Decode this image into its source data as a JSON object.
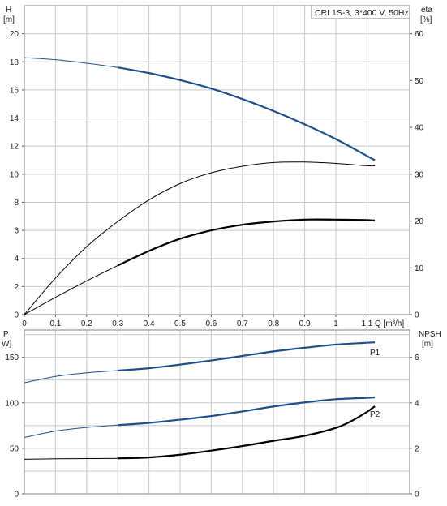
{
  "colors": {
    "blue": "#1f4e8c",
    "black": "#000000",
    "grid": "#c8c8c8",
    "frame": "#808080"
  },
  "header": {
    "title": "CRI 1S-3, 3*400 V, 50Hz"
  },
  "chart_data": [
    {
      "type": "line",
      "name": "performance",
      "xlabel": "Q [m³/h]",
      "x_unit": "Q [m³/h]",
      "xlim": [
        0,
        1.2
      ],
      "x_ticks": [
        "0",
        "0.1",
        "0.2",
        "0.3",
        "0.4",
        "0.5",
        "0.6",
        "0.7",
        "0.8",
        "0.9",
        "1",
        "1.1"
      ],
      "left_axis": {
        "label": "H",
        "unit": "[m]",
        "ylim": [
          0,
          22
        ],
        "ticks": [
          "0",
          "2",
          "4",
          "6",
          "8",
          "10",
          "12",
          "14",
          "16",
          "18",
          "20"
        ]
      },
      "right_axis": {
        "label": "eta",
        "unit": "[%]",
        "ylim": [
          0,
          66
        ],
        "ticks": [
          "0",
          "10",
          "20",
          "30",
          "40",
          "50",
          "60"
        ]
      },
      "grid": true,
      "series": [
        {
          "axis": "left",
          "color": "#1f4e8c",
          "x": [
            0,
            0.1,
            0.2,
            0.3,
            0.4,
            0.5,
            0.6,
            0.7,
            0.8,
            0.9,
            1.0,
            1.1,
            1.125
          ],
          "y": [
            18.3,
            18.15,
            17.9,
            17.6,
            17.2,
            16.7,
            16.1,
            15.35,
            14.5,
            13.55,
            12.5,
            11.3,
            11.0
          ],
          "highlight_from": 0.3
        },
        {
          "axis": "right",
          "color": "#000000",
          "x": [
            0,
            0.1,
            0.2,
            0.3,
            0.4,
            0.5,
            0.6,
            0.7,
            0.8,
            0.9,
            1.0,
            1.1,
            1.125
          ],
          "y": [
            0,
            7.8,
            14.5,
            19.9,
            24.5,
            28.0,
            30.3,
            31.7,
            32.5,
            32.6,
            32.3,
            31.8,
            31.8
          ],
          "highlight_from": 99
        },
        {
          "axis": "right",
          "color": "#000000",
          "x": [
            0,
            0.1,
            0.2,
            0.3,
            0.4,
            0.5,
            0.6,
            0.7,
            0.8,
            0.9,
            1.0,
            1.1,
            1.125
          ],
          "y": [
            0,
            3.7,
            7.2,
            10.5,
            13.6,
            16.2,
            18.0,
            19.2,
            19.9,
            20.3,
            20.3,
            20.2,
            20.1
          ],
          "highlight_from": 0.3
        }
      ]
    },
    {
      "type": "line",
      "name": "power-npsh",
      "xlim": [
        0,
        1.2
      ],
      "left_axis": {
        "label": "P",
        "unit": "W]",
        "ylim": [
          0,
          180
        ],
        "ticks": [
          "0",
          "50",
          "100",
          "150"
        ]
      },
      "right_axis": {
        "label": "NPSH",
        "unit": "[m]",
        "ylim": [
          0,
          7.2
        ],
        "ticks": [
          "0",
          "2",
          "4",
          "6"
        ]
      },
      "grid": true,
      "series": [
        {
          "name": "P1",
          "axis": "left",
          "color": "#1f4e8c",
          "x": [
            0,
            0.1,
            0.2,
            0.3,
            0.4,
            0.5,
            0.6,
            0.7,
            0.8,
            0.9,
            1.0,
            1.1,
            1.125
          ],
          "y": [
            122,
            129,
            133,
            135.5,
            138,
            142,
            146.5,
            151.5,
            156.5,
            160.5,
            164,
            166,
            166.5
          ],
          "highlight_from": 0.3
        },
        {
          "name": "P2",
          "axis": "left",
          "color": "#1f4e8c",
          "x": [
            0,
            0.1,
            0.2,
            0.3,
            0.4,
            0.5,
            0.6,
            0.7,
            0.8,
            0.9,
            1.0,
            1.1,
            1.125
          ],
          "y": [
            62,
            69,
            73,
            75.5,
            78,
            81.5,
            85.5,
            90.5,
            96,
            100.5,
            104,
            105.5,
            106
          ],
          "highlight_from": 0.3
        },
        {
          "axis": "right",
          "color": "#000000",
          "x": [
            0,
            0.1,
            0.2,
            0.3,
            0.4,
            0.5,
            0.6,
            0.7,
            0.8,
            0.9,
            1.0,
            1.05,
            1.1,
            1.125
          ],
          "y": [
            1.52,
            1.54,
            1.55,
            1.56,
            1.6,
            1.72,
            1.9,
            2.1,
            2.33,
            2.55,
            2.9,
            3.2,
            3.6,
            3.85
          ],
          "highlight_from": 0.3
        }
      ]
    }
  ]
}
